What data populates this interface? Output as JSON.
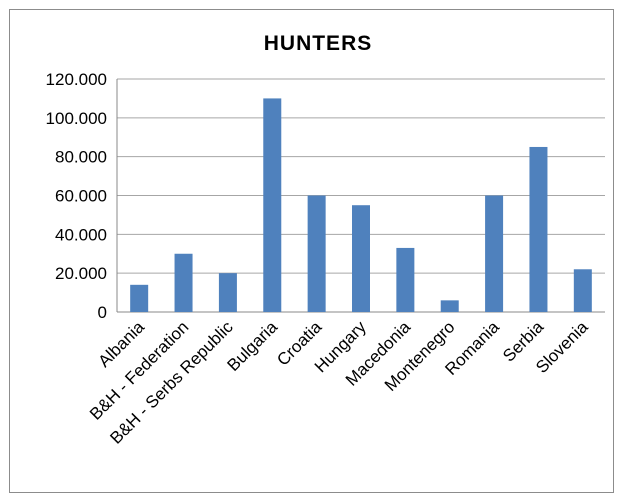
{
  "chart_data": {
    "type": "bar",
    "title": "HUNTERS",
    "xlabel": "",
    "ylabel": "",
    "categories": [
      "Albania",
      "B&H - Federation",
      "B&H - Serbs Republic",
      "Bulgaria",
      "Croatia",
      "Hungary",
      "Macedonia",
      "Montenegro",
      "Romania",
      "Serbia",
      "Slovenia"
    ],
    "values": [
      14000,
      30000,
      20000,
      110000,
      60000,
      55000,
      33000,
      6000,
      60000,
      85000,
      22000
    ],
    "ylim": [
      0,
      120000
    ],
    "yticks": [
      0,
      20000,
      40000,
      60000,
      80000,
      100000,
      120000
    ],
    "ytick_labels": [
      "0",
      "20.000",
      "40.000",
      "60.000",
      "80.000",
      "100.000",
      "120.000"
    ],
    "grid": true,
    "legend": false,
    "bar_color": "#4f81bd",
    "grid_color": "#a6a6a6"
  }
}
